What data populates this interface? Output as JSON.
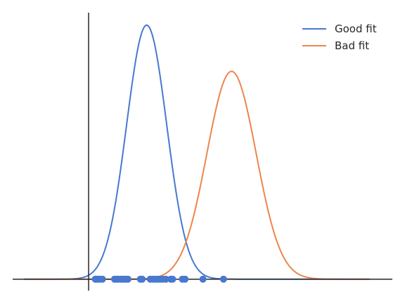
{
  "chart_data": {
    "type": "line",
    "title": "",
    "xlabel": "",
    "ylabel": "",
    "xlim": [
      -1.7,
      6.8
    ],
    "ylim": [
      -0.04,
      0.93
    ],
    "grid": false,
    "legend_position": "top-right",
    "series": [
      {
        "name": "Good fit",
        "color": "#4878d0",
        "mu": 1.3,
        "sigma": 0.45
      },
      {
        "name": "Bad fit",
        "color": "#ee854a",
        "mu": 3.2,
        "sigma": 0.55
      }
    ],
    "points": {
      "color": "#4878d0",
      "x": [
        0.15,
        0.18,
        0.22,
        0.25,
        0.31,
        0.58,
        0.62,
        0.66,
        0.72,
        0.76,
        0.8,
        0.84,
        0.88,
        1.16,
        1.2,
        1.38,
        1.44,
        1.5,
        1.56,
        1.6,
        1.66,
        1.73,
        1.84,
        1.88,
        2.1,
        2.16,
        2.56,
        3.02
      ],
      "y": 0
    }
  }
}
